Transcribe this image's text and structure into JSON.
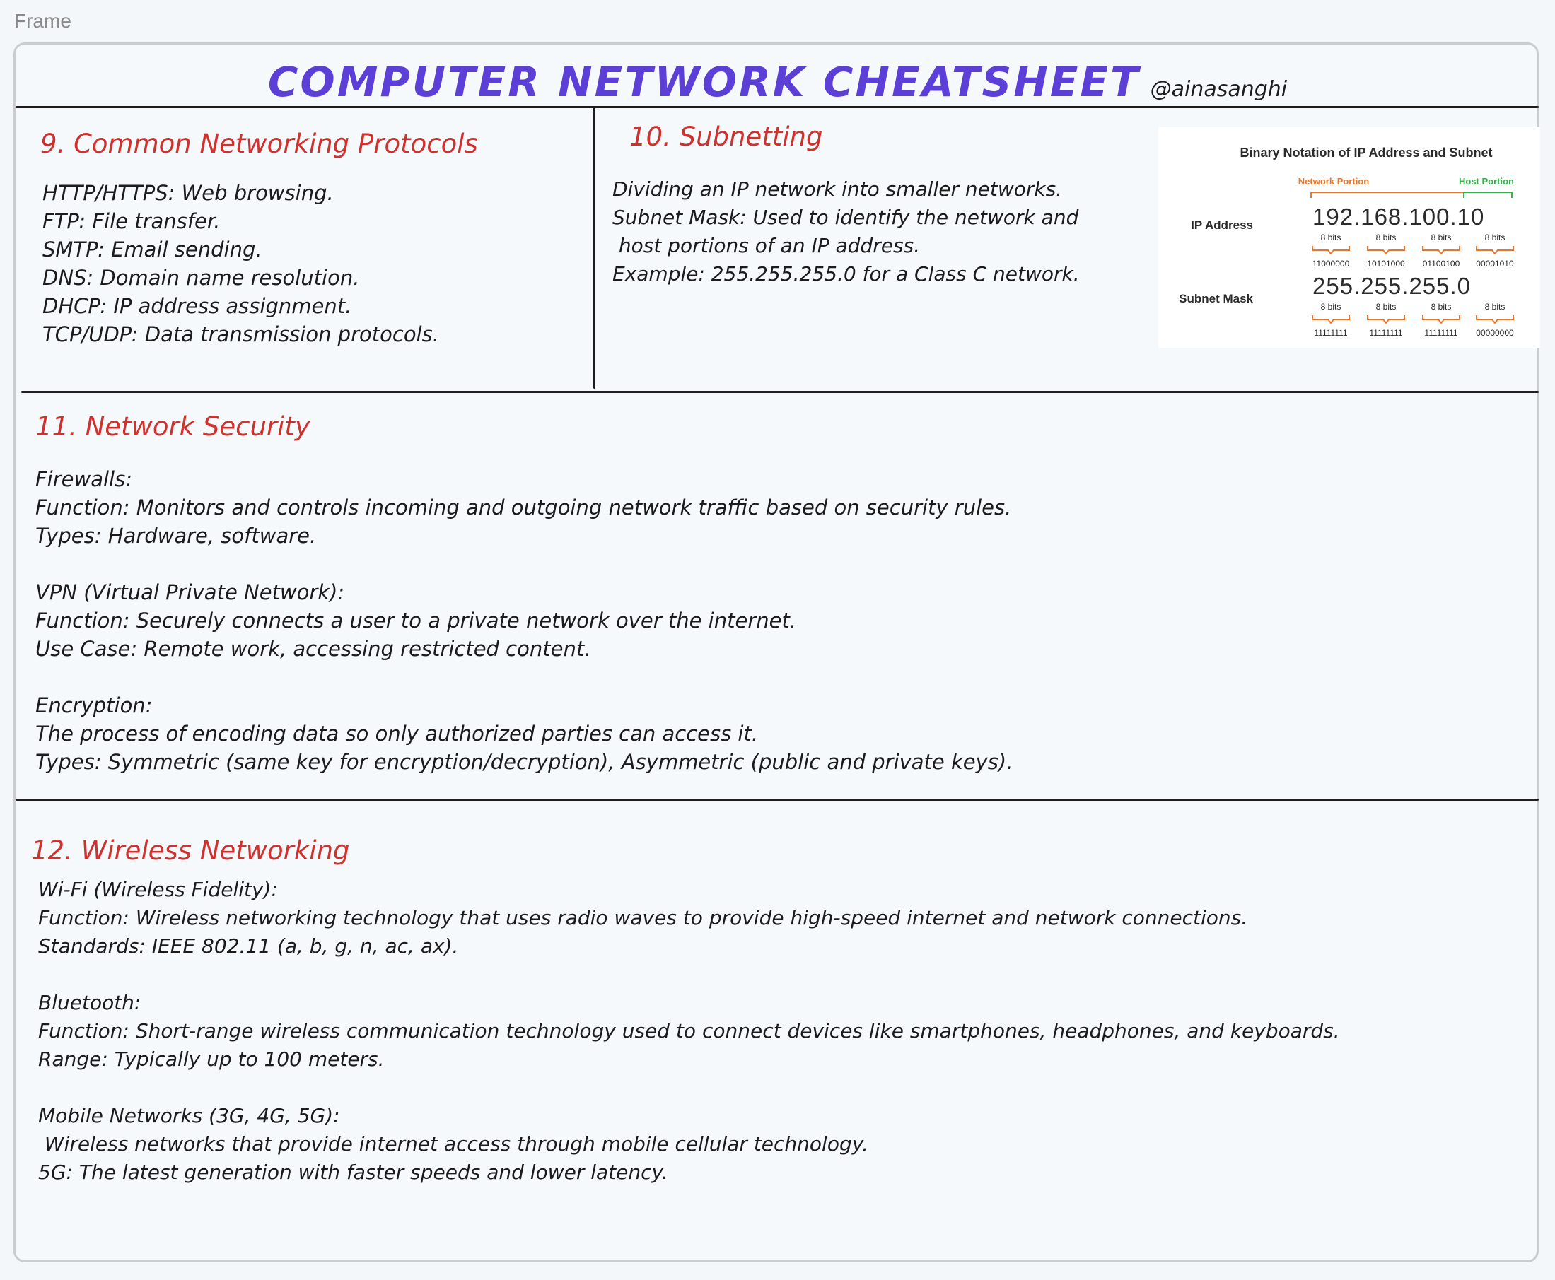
{
  "frame_label": "Frame",
  "title": "COMPUTER NETWORK CHEATSHEET",
  "handle": "@ainasanghi",
  "protocols": {
    "heading": "9. Common Networking Protocols",
    "lines": [
      "HTTP/HTTPS: Web browsing.",
      "FTP: File transfer.",
      "SMTP: Email sending.",
      "DNS: Domain name resolution.",
      "DHCP: IP address assignment.",
      "TCP/UDP: Data transmission protocols."
    ]
  },
  "subnetting": {
    "heading": "10. Subnetting",
    "lines": [
      "Dividing an IP network into smaller networks.",
      "Subnet Mask: Used to identify the network and",
      " host portions of an IP address.",
      "Example: 255.255.255.0 for a Class C network."
    ],
    "diagram": {
      "title": "Binary Notation of IP Address and Subnet",
      "network_portion_label": "Network Portion",
      "host_portion_label": "Host Portion",
      "ip_label": "IP Address",
      "ip_value": "192.168.100.10",
      "ip_bits": [
        "8 bits",
        "8 bits",
        "8 bits",
        "8 bits"
      ],
      "ip_binary": [
        "11000000",
        "10101000",
        "01100100",
        "00001010"
      ],
      "mask_label": "Subnet Mask",
      "mask_value": "255.255.255.0",
      "mask_bits": [
        "8 bits",
        "8 bits",
        "8 bits",
        "8 bits"
      ],
      "mask_binary": [
        "11111111",
        "11111111",
        "11111111",
        "00000000"
      ],
      "colors": {
        "network": "#e8762c",
        "host": "#2fb24a",
        "text": "#2b2b2b"
      }
    }
  },
  "security": {
    "heading": "11. Network Security",
    "groups": [
      {
        "title": "Firewalls:",
        "lines": [
          "Function: Monitors and controls incoming and outgoing network traffic based on security rules.",
          "Types: Hardware, software."
        ]
      },
      {
        "title": "VPN (Virtual Private Network):",
        "lines": [
          "Function: Securely connects a user to a private network over the internet.",
          "Use Case: Remote work, accessing restricted content."
        ]
      },
      {
        "title": "Encryption:",
        "lines": [
          "The process of encoding data so only authorized parties can access it.",
          "Types: Symmetric (same key for encryption/decryption), Asymmetric (public and private keys)."
        ]
      }
    ]
  },
  "wireless": {
    "heading": "12. Wireless Networking",
    "groups": [
      {
        "title": "Wi-Fi (Wireless Fidelity):",
        "lines": [
          "Function: Wireless networking technology that uses radio waves to provide high-speed internet and network connections.",
          "Standards: IEEE 802.11 (a, b, g, n, ac, ax)."
        ]
      },
      {
        "title": "Bluetooth:",
        "lines": [
          "Function: Short-range wireless communication technology used to connect devices like smartphones, headphones, and keyboards.",
          "Range: Typically up to 100 meters."
        ]
      },
      {
        "title": "Mobile Networks (3G, 4G, 5G):",
        "lines": [
          " Wireless networks that provide internet access through mobile cellular technology.",
          "5G: The latest generation with faster speeds and lower latency."
        ]
      }
    ]
  },
  "colors": {
    "title": "#5b3fd6",
    "heading": "#d0312d",
    "text": "#1b1b1b",
    "background": "#f5f9fc"
  }
}
